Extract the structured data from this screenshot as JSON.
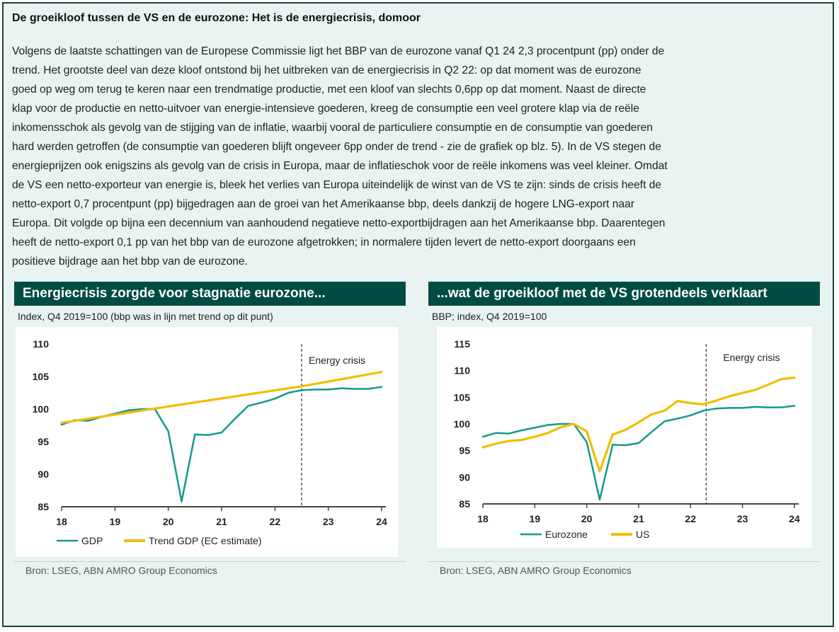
{
  "headline": "De groeikloof tussen de VS en de eurozone: Het is de energiecrisis, domoor",
  "body_lines": [
    "Volgens de laatste schattingen van de Europese Commissie ligt het BBP van de eurozone vanaf Q1 24 2,3 procentpunt (pp) onder de",
    "trend. Het grootste deel van deze kloof ontstond bij het uitbreken van de energiecrisis in Q2 22: op dat moment was de eurozone",
    "goed op weg om terug te keren naar een trendmatige productie, met een kloof van slechts 0,6pp op dat moment. Naast de directe",
    "klap voor de productie en netto-uitvoer van energie-intensieve goederen, kreeg de consumptie een veel grotere klap via de reële",
    "inkomensschok als gevolg van de stijging van de inflatie, waarbij vooral de particuliere consumptie en de consumptie van goederen",
    "hard werden getroffen (de consumptie van goederen blijft ongeveer 6pp onder de trend - zie de grafiek op blz. 5). In de VS stegen de",
    "energieprijzen ook enigszins als gevolg van de crisis in Europa, maar de inflatieschok voor de reële inkomens was veel kleiner. Omdat",
    "de VS een netto-exporteur van energie is, bleek het verlies van Europa uiteindelijk de winst van de VS te zijn: sinds de crisis heeft de",
    "netto-export 0,7 procentpunt (pp) bijgedragen aan de groei van het Amerikaanse bbp, deels dankzij de hogere LNG-export naar",
    "Europa. Dit volgde op bijna een decennium van aanhoudend negatieve netto-exportbijdragen aan het Amerikaanse bbp. Daarentegen",
    "heeft de netto-export 0,1 pp van het bbp van de eurozone afgetrokken; in normalere tijden levert de netto-export doorgaans een",
    "positieve bijdrage aan het bbp van de eurozone."
  ],
  "colors": {
    "teal": "#14998b",
    "gold": "#f2bd00",
    "header_bg": "#004c45",
    "frame_bg": "#e8f3f2"
  },
  "left_panel": {
    "title": "Energiecrisis zorgde voor stagnatie eurozone...",
    "subtitle": "Index, Q4 2019=100 (bbp was in lijn met trend op dit punt)",
    "source": "Bron:  LSEG, ABN AMRO Group Economics"
  },
  "right_panel": {
    "title": "...wat de groeikloof met de VS grotendeels verklaart",
    "subtitle": "BBP; index, Q4 2019=100",
    "source": "Bron: LSEG, ABN AMRO Group Economics"
  },
  "chart_data": [
    {
      "type": "line",
      "x_tick_labels": [
        "18",
        "19",
        "20",
        "21",
        "22",
        "23",
        "24"
      ],
      "x_ticks": [
        2018,
        2019,
        2020,
        2021,
        2022,
        2023,
        2024
      ],
      "xlim": [
        2018,
        2024
      ],
      "ylim": [
        85,
        110
      ],
      "y_ticks": [
        85,
        90,
        95,
        100,
        105,
        110
      ],
      "annotation": {
        "text": "Energy crisis",
        "x": 2022.5
      },
      "series": [
        {
          "name": "GDP",
          "color": "#14998b",
          "x": [
            2018.0,
            2018.25,
            2018.5,
            2018.75,
            2019.0,
            2019.25,
            2019.5,
            2019.75,
            2020.0,
            2020.25,
            2020.5,
            2020.75,
            2021.0,
            2021.25,
            2021.5,
            2021.75,
            2022.0,
            2022.25,
            2022.5,
            2022.75,
            2023.0,
            2023.25,
            2023.5,
            2023.75,
            2024.0
          ],
          "y": [
            97.6,
            98.3,
            98.2,
            98.8,
            99.3,
            99.8,
            100.0,
            100.0,
            96.6,
            85.8,
            96.1,
            96.0,
            96.4,
            98.5,
            100.5,
            101.0,
            101.6,
            102.5,
            102.9,
            103.0,
            103.0,
            103.2,
            103.1,
            103.1,
            103.4
          ]
        },
        {
          "name": "Trend GDP (EC estimate)",
          "color": "#f2bd00",
          "x": [
            2018.0,
            2022.5,
            2024.0
          ],
          "y": [
            97.9,
            103.5,
            105.7
          ]
        }
      ]
    },
    {
      "type": "line",
      "x_tick_labels": [
        "18",
        "19",
        "20",
        "21",
        "22",
        "23",
        "24"
      ],
      "x_ticks": [
        2018,
        2019,
        2020,
        2021,
        2022,
        2023,
        2024
      ],
      "xlim": [
        2018,
        2024
      ],
      "ylim": [
        85,
        115
      ],
      "y_ticks": [
        85,
        90,
        95,
        100,
        105,
        110,
        115
      ],
      "annotation": {
        "text": "Energy crisis",
        "x": 2022.3
      },
      "series": [
        {
          "name": "Eurozone",
          "color": "#14998b",
          "x": [
            2018.0,
            2018.25,
            2018.5,
            2018.75,
            2019.0,
            2019.25,
            2019.5,
            2019.75,
            2020.0,
            2020.25,
            2020.5,
            2020.75,
            2021.0,
            2021.25,
            2021.5,
            2021.75,
            2022.0,
            2022.25,
            2022.5,
            2022.75,
            2023.0,
            2023.25,
            2023.5,
            2023.75,
            2024.0
          ],
          "y": [
            97.6,
            98.3,
            98.2,
            98.8,
            99.3,
            99.8,
            100.0,
            100.0,
            96.6,
            85.8,
            96.1,
            96.0,
            96.4,
            98.5,
            100.5,
            101.0,
            101.6,
            102.5,
            102.9,
            103.0,
            103.0,
            103.2,
            103.1,
            103.1,
            103.4
          ]
        },
        {
          "name": "US",
          "color": "#f2bd00",
          "x": [
            2018.0,
            2018.25,
            2018.5,
            2018.75,
            2019.0,
            2019.25,
            2019.5,
            2019.75,
            2020.0,
            2020.25,
            2020.5,
            2020.75,
            2021.0,
            2021.25,
            2021.5,
            2021.75,
            2022.0,
            2022.25,
            2022.5,
            2022.75,
            2023.0,
            2023.25,
            2023.5,
            2023.75,
            2024.0
          ],
          "y": [
            95.6,
            96.3,
            96.8,
            97.0,
            97.6,
            98.3,
            99.4,
            100.0,
            98.6,
            91.1,
            98.0,
            98.9,
            100.3,
            101.8,
            102.5,
            104.3,
            103.9,
            103.7,
            104.4,
            105.2,
            105.8,
            106.4,
            107.4,
            108.4,
            108.7
          ]
        }
      ]
    }
  ]
}
